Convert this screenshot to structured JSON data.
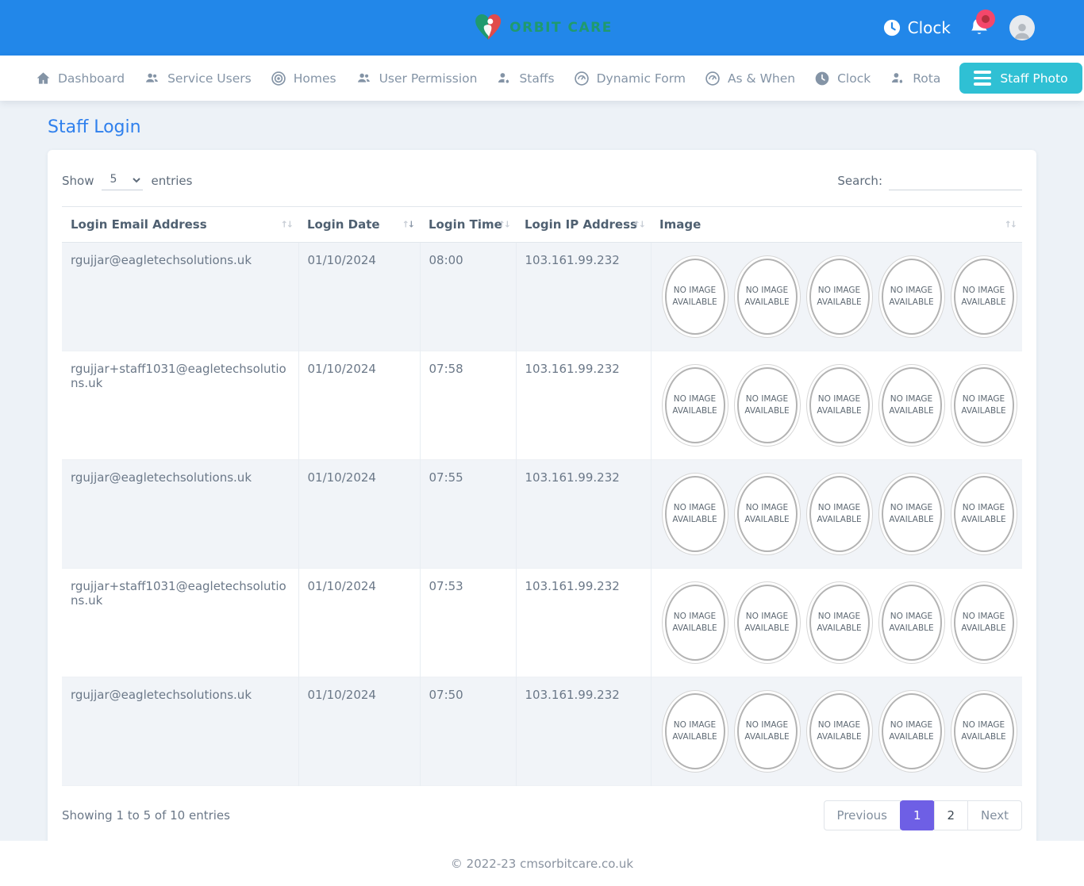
{
  "header": {
    "brand": "ORBIT CARE",
    "clock_label": "Clock",
    "brand_colors": {
      "green": "#1f9a6e",
      "red": "#e04b4b",
      "header_blue": "#2287e9"
    }
  },
  "nav": {
    "items": [
      {
        "label": "Dashboard",
        "icon": "home-icon"
      },
      {
        "label": "Service Users",
        "icon": "people-icon"
      },
      {
        "label": "Homes",
        "icon": "target-icon"
      },
      {
        "label": "User Permission",
        "icon": "people-icon"
      },
      {
        "label": "Staffs",
        "icon": "person-gear-icon"
      },
      {
        "label": "Dynamic Form",
        "icon": "gauge-icon"
      },
      {
        "label": "As & When",
        "icon": "gauge-icon"
      },
      {
        "label": "Clock",
        "icon": "clock-icon"
      },
      {
        "label": "Rota",
        "icon": "person-gear-icon"
      },
      {
        "label": "Staff Photo",
        "icon": "menu-icon",
        "active": true,
        "accent": "#2fc0d4"
      }
    ]
  },
  "page": {
    "title": "Staff Login"
  },
  "controls": {
    "show_label": "Show",
    "entries_value": "5",
    "entries_label": "entries",
    "search_label": "Search:",
    "search_value": ""
  },
  "table": {
    "columns": [
      "Login Email Address",
      "Login Date",
      "Login Time",
      "Login IP Address",
      "Image"
    ],
    "sorted_column": "Login Date",
    "sort_direction": "desc",
    "no_image_text": "NO IMAGE AVAILABLE",
    "rows": [
      {
        "email": "rgujjar@eagletechsolutions.uk",
        "date": "01/10/2024",
        "time": "08:00",
        "ip": "103.161.99.232",
        "image_count": 5
      },
      {
        "email": "rgujjar+staff1031@eagletechsolutions.uk",
        "date": "01/10/2024",
        "time": "07:58",
        "ip": "103.161.99.232",
        "image_count": 5
      },
      {
        "email": "rgujjar@eagletechsolutions.uk",
        "date": "01/10/2024",
        "time": "07:55",
        "ip": "103.161.99.232",
        "image_count": 5
      },
      {
        "email": "rgujjar+staff1031@eagletechsolutions.uk",
        "date": "01/10/2024",
        "time": "07:53",
        "ip": "103.161.99.232",
        "image_count": 5
      },
      {
        "email": "rgujjar@eagletechsolutions.uk",
        "date": "01/10/2024",
        "time": "07:50",
        "ip": "103.161.99.232",
        "image_count": 5
      }
    ]
  },
  "pagination": {
    "info": "Showing 1 to 5 of 10 entries",
    "previous_label": "Previous",
    "pages": [
      "1",
      "2"
    ],
    "active_page": "1",
    "next_label": "Next",
    "active_color": "#6e5fe5"
  },
  "footer": {
    "copyright": "© 2022-23 cmsorbitcare.co.uk"
  }
}
